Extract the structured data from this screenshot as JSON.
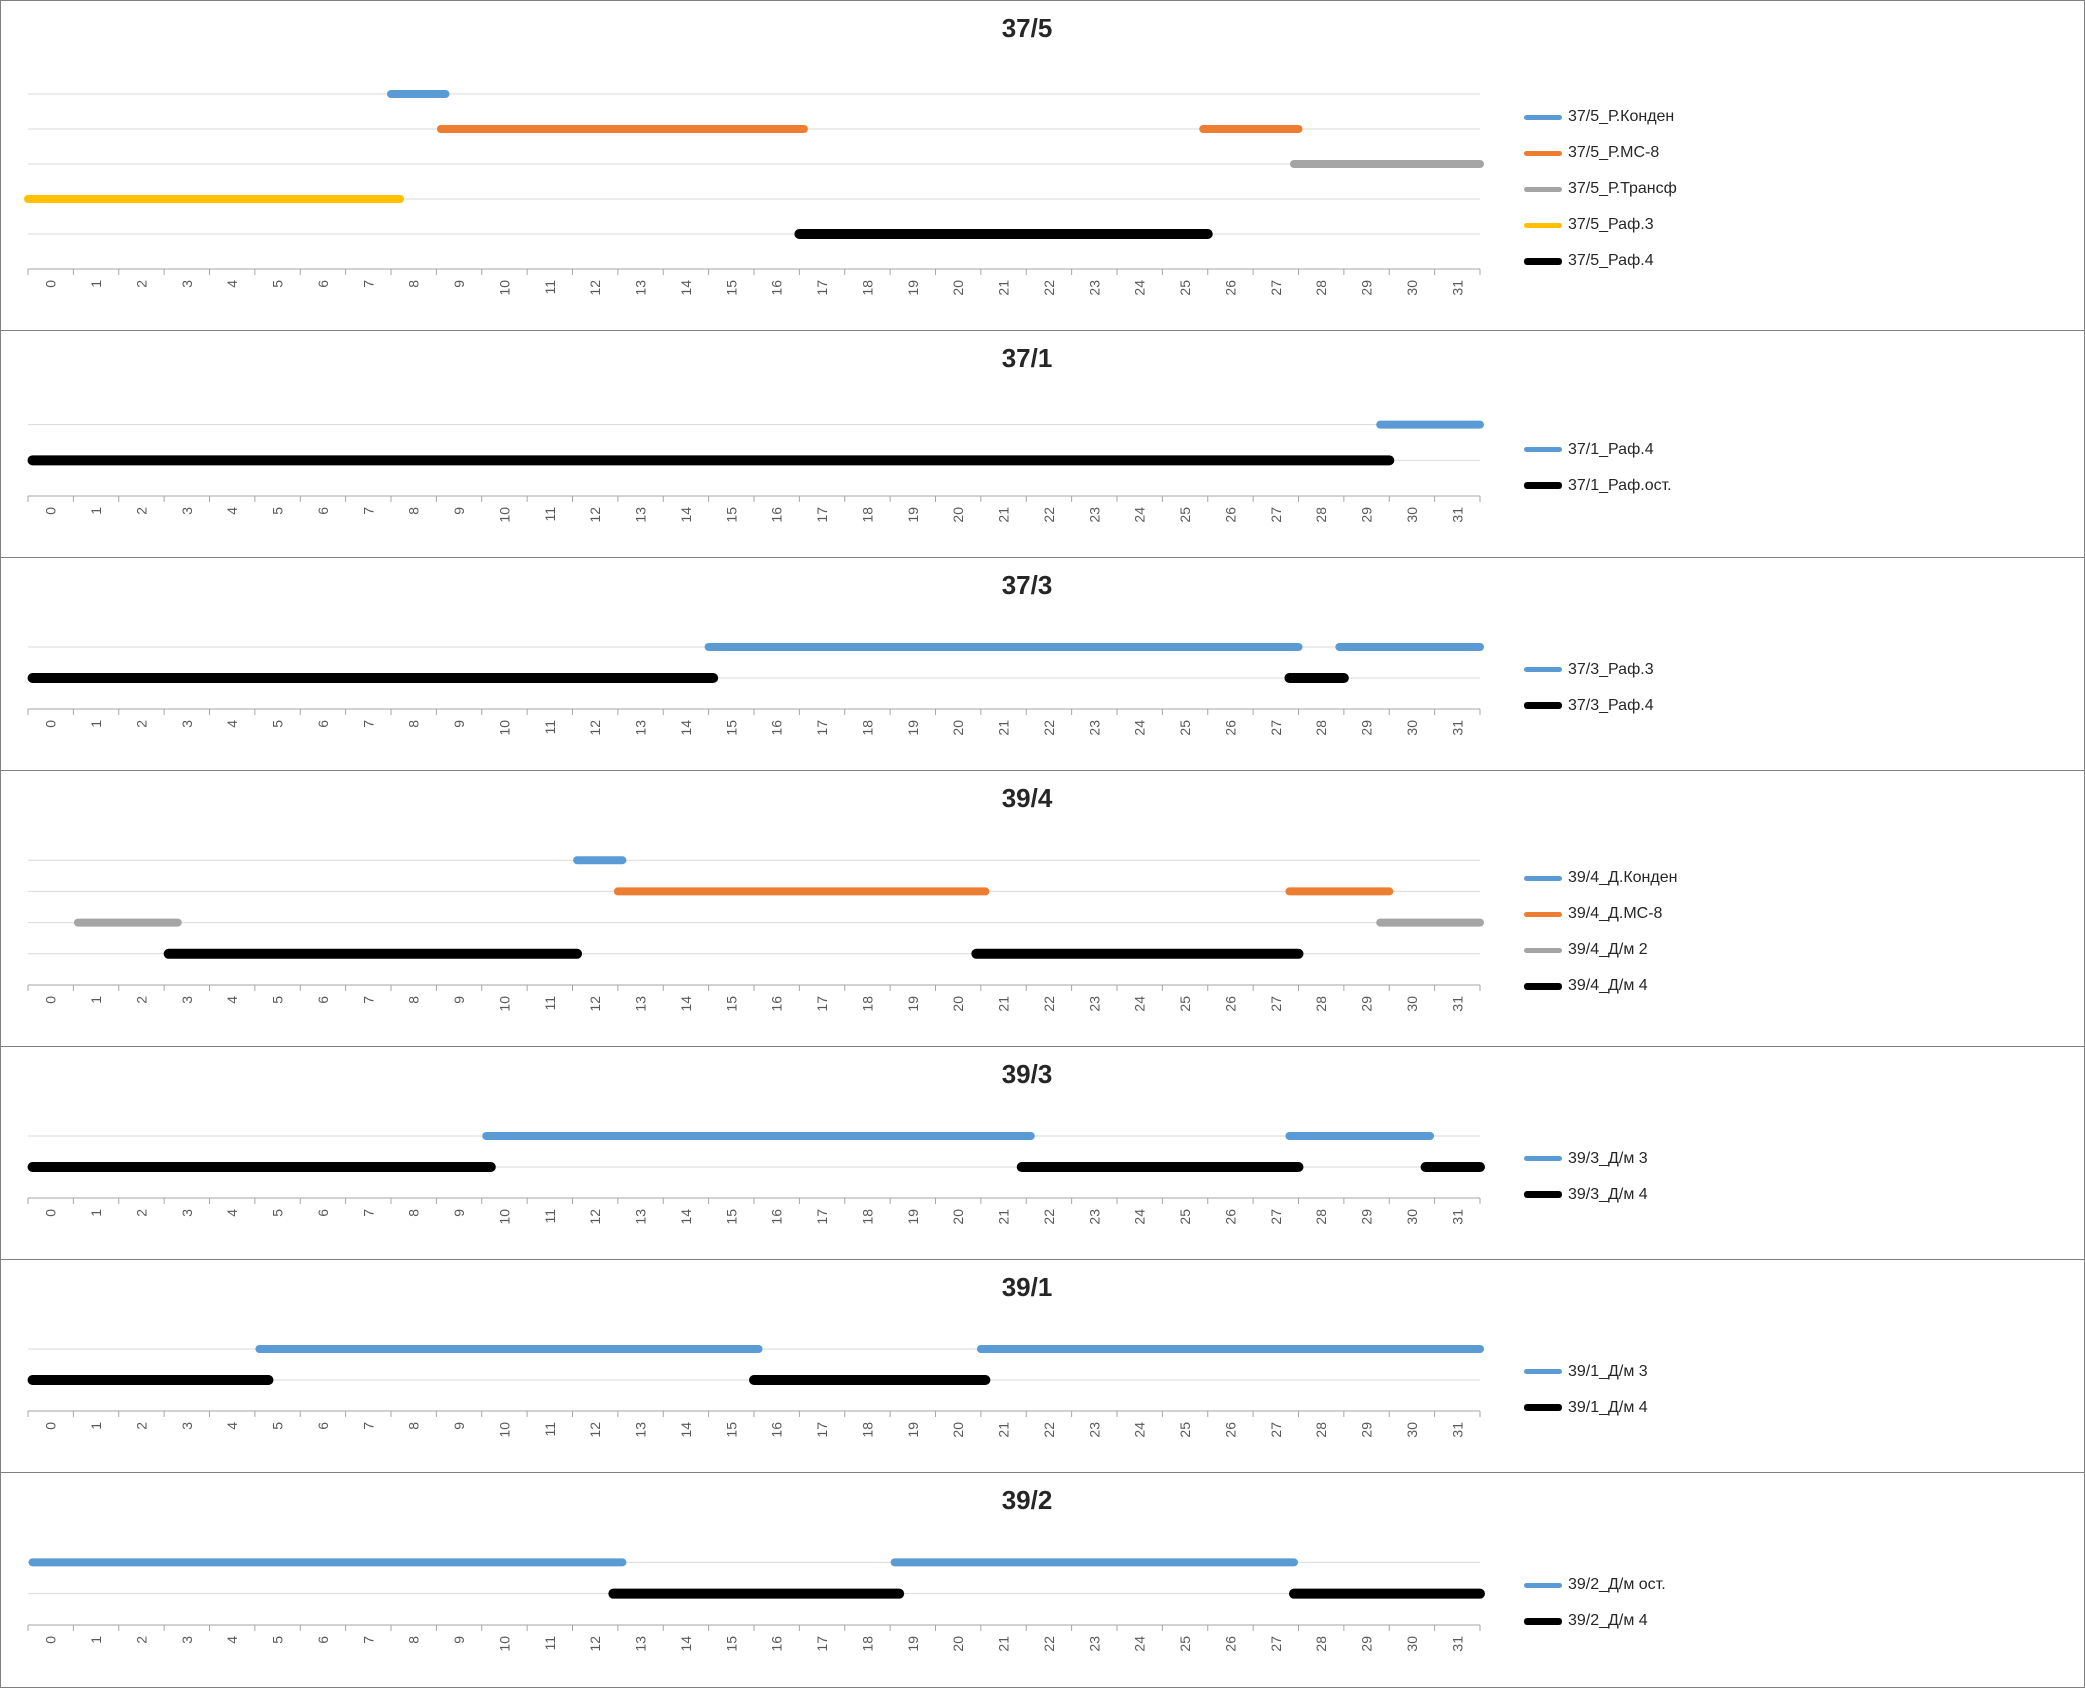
{
  "page": {
    "background": "#FFFFFF",
    "panel_border_color": "#808080",
    "gridline_color": "#D9D9D9",
    "axis_color": "#A6A6A6",
    "palette": {
      "blue": "#5B9BD5",
      "orange": "#ED7D31",
      "gray": "#A5A5A5",
      "yellow": "#FFC000",
      "black": "#000000"
    }
  },
  "chart_data": [
    {
      "type": "line",
      "title": "37/5",
      "xlabel": "",
      "ylabel": "",
      "x_range": [
        -0.5,
        31.5
      ],
      "gridlines": true,
      "legend_position": "right",
      "x_ticks": [
        0,
        1,
        2,
        3,
        4,
        5,
        6,
        7,
        8,
        9,
        10,
        11,
        12,
        13,
        14,
        15,
        16,
        17,
        18,
        19,
        20,
        21,
        22,
        23,
        24,
        25,
        26,
        27,
        28,
        29,
        30,
        31
      ],
      "series": [
        {
          "name": "37/5_Р.Конден",
          "color": "#5B9BD5",
          "segments": [
            [
              7.5,
              8.7
            ]
          ]
        },
        {
          "name": "37/5_Р.МС-8",
          "color": "#ED7D31",
          "segments": [
            [
              8.6,
              16.6
            ],
            [
              25.4,
              27.5
            ]
          ]
        },
        {
          "name": "37/5_Р.Трансф",
          "color": "#A5A5A5",
          "segments": [
            [
              27.4,
              31.5
            ]
          ]
        },
        {
          "name": "37/5_Раф.3",
          "color": "#FFC000",
          "segments": [
            [
              -0.5,
              7.7
            ]
          ]
        },
        {
          "name": "37/5_Раф.4",
          "color": "#000000",
          "segments": [
            [
              16.5,
              25.5
            ]
          ]
        }
      ]
    },
    {
      "type": "line",
      "title": "37/1",
      "xlabel": "",
      "ylabel": "",
      "x_range": [
        -0.5,
        31.5
      ],
      "gridlines": true,
      "legend_position": "right",
      "x_ticks": [
        0,
        1,
        2,
        3,
        4,
        5,
        6,
        7,
        8,
        9,
        10,
        11,
        12,
        13,
        14,
        15,
        16,
        17,
        18,
        19,
        20,
        21,
        22,
        23,
        24,
        25,
        26,
        27,
        28,
        29,
        30,
        31
      ],
      "series": [
        {
          "name": "37/1_Раф.4",
          "color": "#5B9BD5",
          "segments": [
            [
              29.3,
              31.5
            ]
          ]
        },
        {
          "name": "37/1_Раф.ост.",
          "color": "#000000",
          "segments": [
            [
              -0.4,
              29.5
            ]
          ]
        }
      ]
    },
    {
      "type": "line",
      "title": "37/3",
      "xlabel": "",
      "ylabel": "",
      "x_range": [
        -0.5,
        31.5
      ],
      "gridlines": true,
      "legend_position": "right",
      "x_ticks": [
        0,
        1,
        2,
        3,
        4,
        5,
        6,
        7,
        8,
        9,
        10,
        11,
        12,
        13,
        14,
        15,
        16,
        17,
        18,
        19,
        20,
        21,
        22,
        23,
        24,
        25,
        26,
        27,
        28,
        29,
        30,
        31
      ],
      "series": [
        {
          "name": "37/3_Раф.3",
          "color": "#5B9BD5",
          "segments": [
            [
              14.5,
              27.5
            ],
            [
              28.4,
              31.5
            ]
          ]
        },
        {
          "name": "37/3_Раф.4",
          "color": "#000000",
          "segments": [
            [
              -0.4,
              14.6
            ],
            [
              27.3,
              28.5
            ]
          ]
        }
      ]
    },
    {
      "type": "line",
      "title": "39/4",
      "xlabel": "",
      "ylabel": "",
      "x_range": [
        -0.5,
        31.5
      ],
      "gridlines": true,
      "legend_position": "right",
      "x_ticks": [
        0,
        1,
        2,
        3,
        4,
        5,
        6,
        7,
        8,
        9,
        10,
        11,
        12,
        13,
        14,
        15,
        16,
        17,
        18,
        19,
        20,
        21,
        22,
        23,
        24,
        25,
        26,
        27,
        28,
        29,
        30,
        31
      ],
      "series": [
        {
          "name": "39/4_Д.Конден",
          "color": "#5B9BD5",
          "segments": [
            [
              11.6,
              12.6
            ]
          ]
        },
        {
          "name": "39/4_Д.МС-8",
          "color": "#ED7D31",
          "segments": [
            [
              12.5,
              20.6
            ],
            [
              27.3,
              29.5
            ]
          ]
        },
        {
          "name": "39/4_Д/м 2",
          "color": "#A5A5A5",
          "segments": [
            [
              0.6,
              2.8
            ],
            [
              29.3,
              31.5
            ]
          ]
        },
        {
          "name": "39/4_Д/м 4",
          "color": "#000000",
          "segments": [
            [
              2.6,
              11.6
            ],
            [
              20.4,
              27.5
            ]
          ]
        }
      ]
    },
    {
      "type": "line",
      "title": "39/3",
      "xlabel": "",
      "ylabel": "",
      "x_range": [
        -0.5,
        31.5
      ],
      "gridlines": true,
      "legend_position": "right",
      "x_ticks": [
        0,
        1,
        2,
        3,
        4,
        5,
        6,
        7,
        8,
        9,
        10,
        11,
        12,
        13,
        14,
        15,
        16,
        17,
        18,
        19,
        20,
        21,
        22,
        23,
        24,
        25,
        26,
        27,
        28,
        29,
        30,
        31
      ],
      "series": [
        {
          "name": "39/3_Д/м 3",
          "color": "#5B9BD5",
          "segments": [
            [
              9.6,
              21.6
            ],
            [
              27.3,
              30.4
            ]
          ]
        },
        {
          "name": "39/3_Д/м 4",
          "color": "#000000",
          "segments": [
            [
              -0.4,
              9.7
            ],
            [
              21.4,
              27.5
            ],
            [
              30.3,
              31.5
            ]
          ]
        }
      ]
    },
    {
      "type": "line",
      "title": "39/1",
      "xlabel": "",
      "ylabel": "",
      "x_range": [
        -0.5,
        31.5
      ],
      "gridlines": true,
      "legend_position": "right",
      "x_ticks": [
        0,
        1,
        2,
        3,
        4,
        5,
        6,
        7,
        8,
        9,
        10,
        11,
        12,
        13,
        14,
        15,
        16,
        17,
        18,
        19,
        20,
        21,
        22,
        23,
        24,
        25,
        26,
        27,
        28,
        29,
        30,
        31
      ],
      "series": [
        {
          "name": "39/1_Д/м 3",
          "color": "#5B9BD5",
          "segments": [
            [
              4.6,
              15.6
            ],
            [
              20.5,
              31.5
            ]
          ]
        },
        {
          "name": "39/1_Д/м 4",
          "color": "#000000",
          "segments": [
            [
              -0.4,
              4.8
            ],
            [
              15.5,
              20.6
            ]
          ]
        }
      ]
    },
    {
      "type": "line",
      "title": "39/2",
      "xlabel": "",
      "ylabel": "",
      "x_range": [
        -0.5,
        31.5
      ],
      "gridlines": true,
      "legend_position": "right",
      "x_ticks": [
        0,
        1,
        2,
        3,
        4,
        5,
        6,
        7,
        8,
        9,
        10,
        11,
        12,
        13,
        14,
        15,
        16,
        17,
        18,
        19,
        20,
        21,
        22,
        23,
        24,
        25,
        26,
        27,
        28,
        29,
        30,
        31
      ],
      "series": [
        {
          "name": "39/2_Д/м ост.",
          "color": "#5B9BD5",
          "segments": [
            [
              -0.4,
              12.6
            ],
            [
              18.6,
              27.4
            ]
          ]
        },
        {
          "name": "39/2_Д/м 4",
          "color": "#000000",
          "segments": [
            [
              12.4,
              18.7
            ],
            [
              27.4,
              31.5
            ]
          ]
        }
      ]
    }
  ]
}
